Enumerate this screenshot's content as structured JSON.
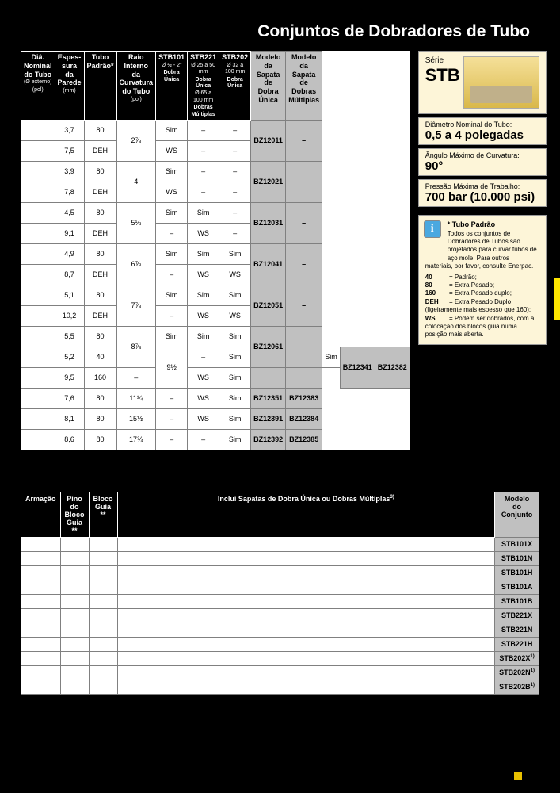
{
  "title": "Conjuntos de Dobradores de Tubo",
  "headers": {
    "c1": "Diâ. Nominal do Tubo",
    "c1s": "(Ø externo)",
    "c1u": "(pol)",
    "c2": "Espes- sura da Parede",
    "c2u": "(mm)",
    "c3": "Tubo Padrão*",
    "c4": "Raio Interno da Curvatura do Tubo",
    "c4u": "(pol)",
    "c5": "STB101",
    "c5s": "Ø ½ - 2\"",
    "c5b": "Dobra Única",
    "c6": "STB221",
    "c6s1": "Ø 25 a 50 mm",
    "c6s2": "Dobra Única",
    "c6s3": "Ø 65 a 100 mm",
    "c6b": "Dobras Múltiplas",
    "c7": "STB202",
    "c7s": "Ø 32 a 100 mm",
    "c7b": "Dobra Única",
    "c8": "Modelo da Sapata de Dobra Única",
    "c9": "Modelo da Sapata de Dobras Múltiplas"
  },
  "rows": [
    [
      "",
      "3,7",
      "80",
      "2⅞",
      "Sim",
      "–",
      "–",
      "BZ12011",
      "–"
    ],
    [
      "",
      "7,5",
      "DEH",
      "",
      "WS",
      "–",
      "–",
      "",
      ""
    ],
    [
      "",
      "3,9",
      "80",
      "4",
      "Sim",
      "–",
      "–",
      "BZ12021",
      "–"
    ],
    [
      "",
      "7,8",
      "DEH",
      "",
      "WS",
      "–",
      "–",
      "",
      ""
    ],
    [
      "",
      "4,5",
      "80",
      "5⅛",
      "Sim",
      "Sim",
      "–",
      "BZ12031",
      "–"
    ],
    [
      "",
      "9,1",
      "DEH",
      "",
      "–",
      "WS",
      "–",
      "",
      ""
    ],
    [
      "",
      "4,9",
      "80",
      "6⅞",
      "Sim",
      "Sim",
      "Sim",
      "BZ12041",
      "–"
    ],
    [
      "",
      "8,7",
      "DEH",
      "",
      "–",
      "WS",
      "WS",
      "",
      ""
    ],
    [
      "",
      "5,1",
      "80",
      "7⅞",
      "Sim",
      "Sim",
      "Sim",
      "BZ12051",
      "–"
    ],
    [
      "",
      "10,2",
      "DEH",
      "",
      "–",
      "WS",
      "WS",
      "",
      ""
    ],
    [
      "",
      "5,5",
      "80",
      "8⅞",
      "Sim",
      "Sim",
      "Sim",
      "BZ12061",
      "–"
    ],
    [
      "",
      "5,2",
      "40",
      "9½",
      "–",
      "Sim",
      "Sim",
      "BZ12341",
      "BZ12382"
    ],
    [
      "",
      "9,5",
      "160",
      "",
      "–",
      "WS",
      "Sim",
      "",
      ""
    ],
    [
      "",
      "7,6",
      "80",
      "11¼",
      "–",
      "WS",
      "Sim",
      "BZ12351",
      "BZ12383"
    ],
    [
      "",
      "8,1",
      "80",
      "15½",
      "–",
      "WS",
      "Sim",
      "BZ12391",
      "BZ12384"
    ],
    [
      "",
      "8,6",
      "80",
      "17¾",
      "–",
      "–",
      "Sim",
      "BZ12392",
      "BZ12385"
    ]
  ],
  "series": {
    "label": "Série",
    "name": "STB"
  },
  "specs": [
    {
      "label": "Diâmetro Nominal do Tubo:",
      "value": "0,5 a 4 polegadas"
    },
    {
      "label": "Ângulo Máximo de Curvatura:",
      "value": "90°"
    },
    {
      "label": "Pressão Máxima de Trabalho:",
      "value": "700 bar (10.000 psi)"
    }
  ],
  "info": {
    "title": "* Tubo Padrão",
    "body": "Todos os conjuntos de Dobradores de Tubos são projetados para curvar tubos de aço mole. Para outros",
    "body2": "materiais, por favor, consulte Enerpac.",
    "legend": [
      {
        "k": "40",
        "v": "= Padrão;"
      },
      {
        "k": "80",
        "v": "= Extra Pesado;"
      },
      {
        "k": "160",
        "v": "= Extra Pesado duplo;"
      },
      {
        "k": "DEH",
        "v": "= Extra Pesado Duplo (ligeiramente mais espesso que 160);"
      },
      {
        "k": "WS",
        "v": "= Podem ser dobrados, com a colocação dos blocos guia numa posição mais aberta."
      }
    ]
  },
  "setHeaders": {
    "c1": "Armação",
    "c2": "Pino do Bloco Guia",
    "c2s": "**",
    "c3": "Bloco Guia",
    "c3s": "**",
    "c4": "Inclui Sapatas de Dobra Única ou Dobras Múltiplas",
    "c4sup": "3)",
    "c5": "Modelo do Conjunto"
  },
  "setRows": [
    "STB101X",
    "STB101N",
    "STB101H",
    "STB101A",
    "STB101B",
    "STB221X",
    "STB221N",
    "STB221H",
    "STB202X",
    "STB202N",
    "STB202B"
  ],
  "setSup": [
    "1)",
    "1)",
    "1)"
  ]
}
